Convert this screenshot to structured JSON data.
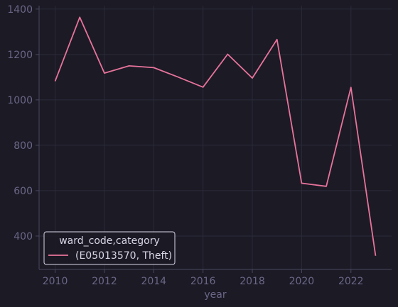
{
  "colors": {
    "background": "#1b1a25",
    "grid": "#2b2a3a",
    "axis": "#4a4860",
    "tick_text": "#6b6787",
    "series": "#e8739b",
    "legend_border": "#d8d6e6"
  },
  "chart_data": {
    "type": "line",
    "xlabel": "year",
    "ylabel": "",
    "xlim": [
      2009.35,
      2023.65
    ],
    "ylim": [
      253,
      1415
    ],
    "x_ticks": [
      2010,
      2012,
      2014,
      2016,
      2018,
      2020,
      2022
    ],
    "y_ticks": [
      400,
      600,
      800,
      1000,
      1200,
      1400
    ],
    "grid": true,
    "legend": {
      "title": "ward_code,category",
      "placement": "bottom-left"
    },
    "series": [
      {
        "name": "(E05013570, Theft)",
        "color": "#e8739b",
        "x": [
          2010,
          2011,
          2012,
          2013,
          2014,
          2015,
          2016,
          2017,
          2018,
          2019,
          2020,
          2021,
          2022,
          2023
        ],
        "y": [
          1082,
          1364,
          1118,
          1150,
          1142,
          1100,
          1056,
          1201,
          1096,
          1266,
          633,
          619,
          1055,
          313
        ]
      }
    ]
  }
}
